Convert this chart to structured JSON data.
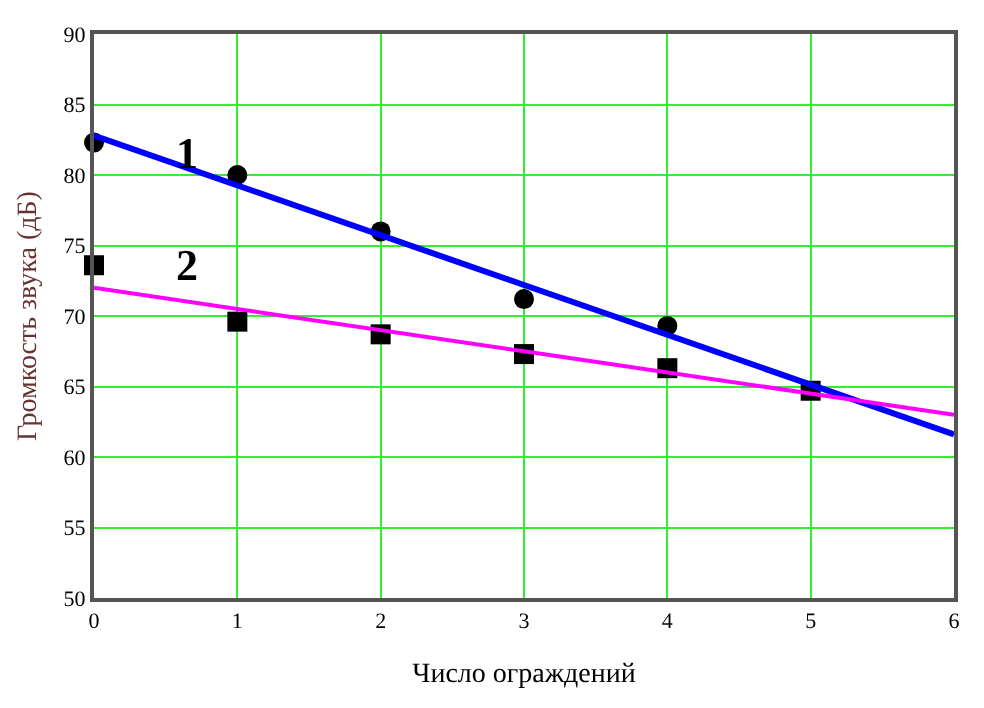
{
  "chart_data": {
    "type": "scatter",
    "xlabel": "Число ограждений",
    "ylabel": "Громкость звука (дБ)",
    "x": [
      0,
      1,
      2,
      3,
      4,
      5
    ],
    "series": [
      {
        "color": "#000000",
        "marker": "circle",
        "values": [
          82.3,
          80,
          76,
          71.2,
          69.3,
          null
        ]
      },
      {
        "color": "#000000",
        "marker": "square",
        "values": [
          73.6,
          69.6,
          68.7,
          67.3,
          66.3,
          64.7
        ]
      },
      {
        "type": "line",
        "color": "#0000ff",
        "marker": "none",
        "x": [
          0,
          3,
          6
        ],
        "values": [
          82.8,
          72.2,
          61.6
        ]
      },
      {
        "type": "line",
        "color": "#ff00ff",
        "marker": "none",
        "x": [
          0,
          3,
          6
        ],
        "values": [
          72,
          67.5,
          63
        ]
      }
    ],
    "annotations": [
      "1",
      "2"
    ],
    "xlim": [
      0,
      6
    ],
    "xticks": [
      0,
      1,
      2,
      3,
      4,
      5,
      6
    ],
    "ylim": [
      50,
      90
    ],
    "yticks": [
      50,
      55,
      60,
      65,
      70,
      75,
      80,
      85,
      90
    ],
    "grid": true
  }
}
